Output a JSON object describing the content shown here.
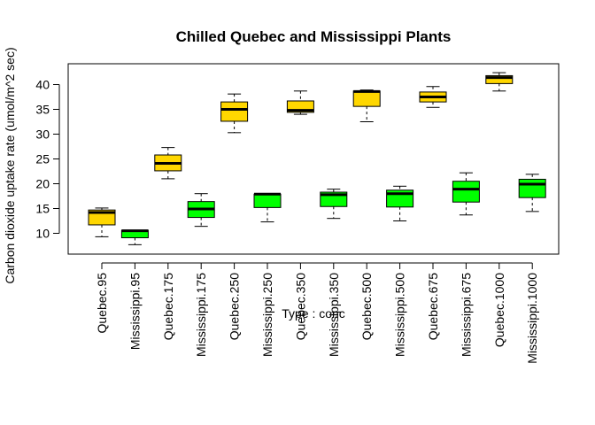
{
  "chart_data": {
    "type": "boxplot",
    "title": "Chilled Quebec and Mississippi Plants",
    "xlabel": "Type : conc",
    "ylabel": "Carbon dioxide uptake rate (umol/m^2 sec)",
    "ylim": [
      5.8,
      44.2
    ],
    "yticks": [
      10,
      15,
      20,
      25,
      30,
      35,
      40
    ],
    "grid": false,
    "colors": {
      "Quebec": "#ffd700",
      "Mississippi": "#00ff00"
    },
    "boxes": [
      {
        "label": "Quebec.95",
        "group": "Quebec",
        "whisker_low": 9.3,
        "q1": 11.7,
        "median": 14.2,
        "q3": 14.7,
        "whisker_high": 15.1
      },
      {
        "label": "Mississippi.95",
        "group": "Mississippi",
        "whisker_low": 7.7,
        "q1": 9.1,
        "median": 10.5,
        "q3": 10.6,
        "whisker_high": 10.6
      },
      {
        "label": "Quebec.175",
        "group": "Quebec",
        "whisker_low": 21.0,
        "q1": 22.6,
        "median": 24.1,
        "q3": 25.8,
        "whisker_high": 27.3
      },
      {
        "label": "Mississippi.175",
        "group": "Mississippi",
        "whisker_low": 11.4,
        "q1": 13.2,
        "median": 14.9,
        "q3": 16.4,
        "whisker_high": 18.0
      },
      {
        "label": "Quebec.250",
        "group": "Quebec",
        "whisker_low": 30.3,
        "q1": 32.6,
        "median": 35.0,
        "q3": 36.5,
        "whisker_high": 38.1
      },
      {
        "label": "Mississippi.250",
        "group": "Mississippi",
        "whisker_low": 12.3,
        "q1": 15.2,
        "median": 17.9,
        "q3": 17.9,
        "whisker_high": 17.9
      },
      {
        "label": "Quebec.350",
        "group": "Quebec",
        "whisker_low": 34.0,
        "q1": 34.4,
        "median": 34.8,
        "q3": 36.7,
        "whisker_high": 38.7
      },
      {
        "label": "Mississippi.350",
        "group": "Mississippi",
        "whisker_low": 13.0,
        "q1": 15.4,
        "median": 17.8,
        "q3": 18.3,
        "whisker_high": 18.9
      },
      {
        "label": "Quebec.500",
        "group": "Quebec",
        "whisker_low": 32.5,
        "q1": 35.6,
        "median": 38.6,
        "q3": 38.7,
        "whisker_high": 38.9
      },
      {
        "label": "Mississippi.500",
        "group": "Mississippi",
        "whisker_low": 12.5,
        "q1": 15.3,
        "median": 18.0,
        "q3": 18.7,
        "whisker_high": 19.5
      },
      {
        "label": "Quebec.675",
        "group": "Quebec",
        "whisker_low": 35.4,
        "q1": 36.5,
        "median": 37.5,
        "q3": 38.5,
        "whisker_high": 39.6
      },
      {
        "label": "Mississippi.675",
        "group": "Mississippi",
        "whisker_low": 13.7,
        "q1": 16.3,
        "median": 18.9,
        "q3": 20.5,
        "whisker_high": 22.2
      },
      {
        "label": "Quebec.1000",
        "group": "Quebec",
        "whisker_low": 38.7,
        "q1": 40.2,
        "median": 41.4,
        "q3": 41.8,
        "whisker_high": 42.4
      },
      {
        "label": "Mississippi.1000",
        "group": "Mississippi",
        "whisker_low": 14.4,
        "q1": 17.2,
        "median": 19.9,
        "q3": 20.9,
        "whisker_high": 21.9
      }
    ]
  }
}
